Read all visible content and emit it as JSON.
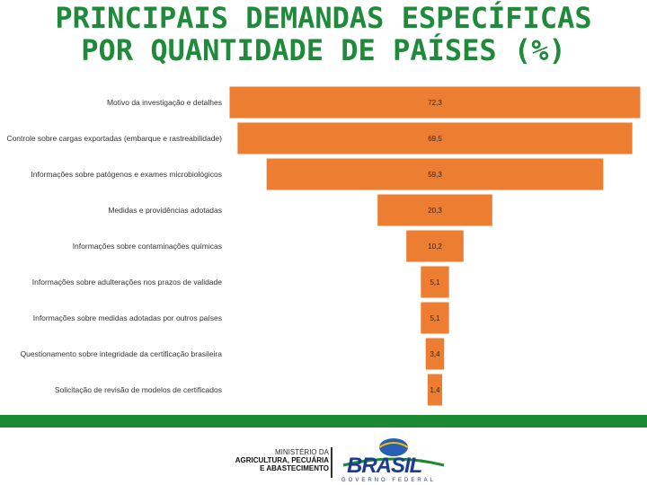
{
  "title": {
    "line1": "PRINCIPAIS DEMANDAS ESPECÍFICAS",
    "line2": "POR QUANTIDADE DE PAÍSES (%)"
  },
  "chart_data": {
    "type": "bar",
    "orientation": "horizontal-centered",
    "categories": [
      "Motivo da investigação e detalhes",
      "Controle sobre cargas exportadas (embarque e rastreabilidade)",
      "Informações sobre patógenos e exames microbiológicos",
      "Medidas e providências adotadas",
      "Informações sobre contaminações químicas",
      "Informações sobre adulterações nos prazos de validade",
      "Informações sobre medidas adotadas por outros países",
      "Questionamento sobre integridade da certificação brasileira",
      "Solicitação de revisão de modelos de certificados"
    ],
    "values": [
      72.3,
      69.5,
      59.3,
      20.3,
      10.2,
      5.1,
      5.1,
      3.4,
      1.4
    ],
    "value_labels": [
      "72,3",
      "69,5",
      "59,3",
      "20,3",
      "10,2",
      "5,1",
      "5,1",
      "3,4",
      "1,4"
    ],
    "bar_color": "#ed7d31",
    "grid": false,
    "legend": "none"
  },
  "footer": {
    "ministry_line1": "MINISTÉRIO DA",
    "ministry_line2": "AGRICULTURA, PECUÁRIA",
    "ministry_line3": "E ABASTECIMENTO",
    "brand": "BRASIL",
    "brand_sub": "GOVERNO FEDERAL",
    "band_color": "#1b8a32",
    "brand_color": "#1c3d8f"
  }
}
